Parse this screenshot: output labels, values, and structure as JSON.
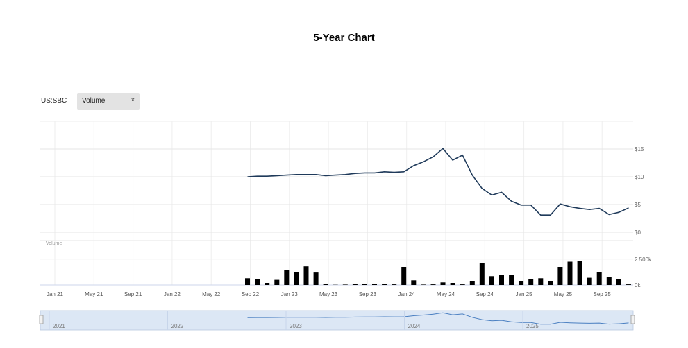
{
  "page": {
    "title": "5-Year Chart"
  },
  "controls": {
    "ticker": "US:SBC",
    "chip_label": "Volume",
    "chip_close": "×"
  },
  "chart_data": {
    "type": "line",
    "price_axis_ticks": [
      "$15",
      "$10",
      "$5",
      "$0"
    ],
    "price_axis_values": [
      15,
      10,
      5,
      0
    ],
    "ylim": [
      0,
      20
    ],
    "volume_label": "Volume",
    "volume_axis_ticks": [
      "2 500k",
      "0k"
    ],
    "volume_axis_values": [
      2500,
      0
    ],
    "volume_ylim": [
      0,
      4300
    ],
    "x_ticks": [
      "Jan 21",
      "May 21",
      "Sep 21",
      "Jan 22",
      "May 22",
      "Sep 22",
      "Jan 23",
      "May 23",
      "Sep 23",
      "Jan 24",
      "May 24",
      "Sep 24",
      "Jan 25",
      "May 25",
      "Sep 25"
    ],
    "navigator_years": [
      "2021",
      "2022",
      "2023",
      "2024",
      "2025"
    ],
    "colors": {
      "line": "#1f3a5a",
      "bar": "#000000",
      "navigator_fill": "#dce7f5",
      "navigator_line": "#4a7fc1"
    },
    "grid": true,
    "series": [
      {
        "type": "line",
        "x": [
          "2022-09",
          "2022-10",
          "2022-11",
          "2022-12",
          "2023-01",
          "2023-02",
          "2023-03",
          "2023-04",
          "2023-05",
          "2023-06",
          "2023-07",
          "2023-08",
          "2023-09",
          "2023-10",
          "2023-11",
          "2023-12",
          "2024-01",
          "2024-02",
          "2024-03",
          "2024-04",
          "2024-05",
          "2024-06",
          "2024-07",
          "2024-08",
          "2024-09",
          "2024-10",
          "2024-11",
          "2024-12",
          "2025-01",
          "2025-02",
          "2025-03",
          "2025-04",
          "2025-05",
          "2025-06",
          "2025-07",
          "2025-08",
          "2025-09",
          "2025-10",
          "2025-11",
          "2025-12"
        ],
        "values": [
          10.0,
          10.1,
          10.1,
          10.2,
          10.3,
          10.4,
          10.4,
          10.4,
          10.2,
          10.3,
          10.4,
          10.6,
          10.7,
          10.7,
          10.9,
          10.8,
          10.9,
          12.0,
          12.7,
          13.6,
          15.1,
          13.0,
          13.9,
          10.3,
          7.9,
          6.7,
          7.2,
          5.6,
          4.9,
          4.9,
          3.1,
          3.1,
          5.1,
          4.6,
          4.3,
          4.1,
          4.3,
          3.2,
          3.6,
          4.4
        ]
      },
      {
        "type": "bar",
        "x": [
          "2022-09",
          "2022-10",
          "2022-11",
          "2022-12",
          "2023-01",
          "2023-02",
          "2023-03",
          "2023-04",
          "2023-05",
          "2023-06",
          "2023-07",
          "2023-08",
          "2023-09",
          "2023-10",
          "2023-11",
          "2023-12",
          "2024-01",
          "2024-02",
          "2024-03",
          "2024-04",
          "2024-05",
          "2024-06",
          "2024-07",
          "2024-08",
          "2024-09",
          "2024-10",
          "2024-11",
          "2024-12",
          "2025-01",
          "2025-02",
          "2025-03",
          "2025-04",
          "2025-05",
          "2025-06",
          "2025-07",
          "2025-08",
          "2025-09",
          "2025-10",
          "2025-11",
          "2025-12"
        ],
        "values": [
          650,
          600,
          200,
          500,
          1450,
          1250,
          1800,
          1200,
          80,
          20,
          40,
          80,
          80,
          100,
          80,
          60,
          1750,
          450,
          40,
          60,
          250,
          200,
          60,
          350,
          2100,
          850,
          1000,
          1000,
          350,
          600,
          650,
          400,
          1750,
          2250,
          2300,
          700,
          1250,
          800,
          550,
          60
        ]
      }
    ]
  }
}
